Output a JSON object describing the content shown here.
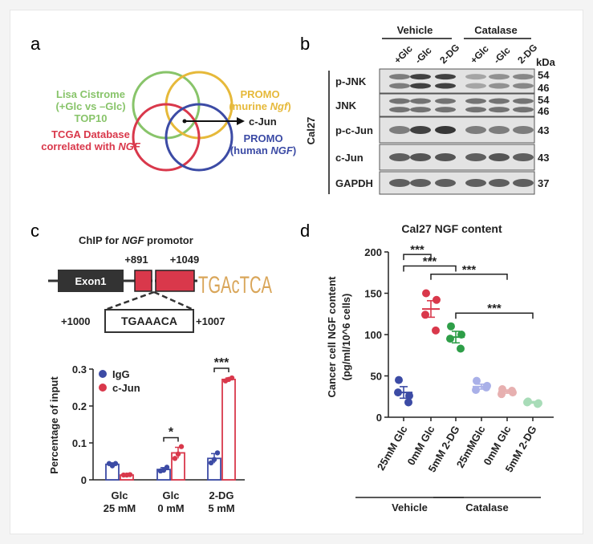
{
  "panels": {
    "a": "a",
    "b": "b",
    "c": "c",
    "d": "d"
  },
  "venn": {
    "lisa": [
      "Lisa Cistrome",
      "(+Glc vs –Glc)",
      "TOP10"
    ],
    "promo_murine": [
      "PROMO",
      "(murine ",
      "Ngf",
      ")"
    ],
    "tcga": [
      "TCGA Database",
      "correlated with ",
      "NGF"
    ],
    "promo_human": [
      "PROMO",
      "(human ",
      "NGF",
      ")"
    ],
    "result": "c-Jun",
    "colors": {
      "lisa": "#88c46a",
      "promo_murine": "#e6b93a",
      "tcga": "#d9384b",
      "promo_human": "#3c4ba5"
    }
  },
  "western": {
    "group_labels": [
      "Vehicle",
      "Catalase"
    ],
    "lane_labels": [
      "+Glc",
      "-Glc",
      "2-DG",
      "+Glc",
      "-Glc",
      "2-DG"
    ],
    "kda_label": "kDa",
    "cell_line": "Cal27",
    "blots": [
      {
        "name": "p-JNK",
        "kda": [
          "54",
          "46"
        ],
        "intensities": [
          0.55,
          0.85,
          0.85,
          0.35,
          0.45,
          0.5
        ]
      },
      {
        "name": "JNK",
        "kda": [
          "54",
          "46"
        ],
        "intensities": [
          0.6,
          0.6,
          0.6,
          0.6,
          0.6,
          0.6
        ]
      },
      {
        "name": "p-c-Jun",
        "kda": [
          "43"
        ],
        "intensities": [
          0.55,
          0.85,
          0.9,
          0.55,
          0.55,
          0.55
        ]
      },
      {
        "name": "c-Jun",
        "kda": [
          "43"
        ],
        "intensities": [
          0.7,
          0.75,
          0.75,
          0.7,
          0.75,
          0.7
        ]
      },
      {
        "name": "GAPDH",
        "kda": [
          "37"
        ],
        "intensities": [
          0.7,
          0.7,
          0.7,
          0.7,
          0.7,
          0.7
        ]
      }
    ]
  },
  "chip": {
    "title_prefix": "ChIP for ",
    "title_gene": "NGF",
    "title_suffix": " promotor",
    "exon_label": "Exon1",
    "pos1": "+891",
    "pos2": "+1049",
    "motif": "TGAcTCA",
    "seq": "TGAAACA",
    "seq_start": "+1000",
    "seq_end": "+1007"
  },
  "chart_data": [
    {
      "type": "bar",
      "ylabel": "Percentage of input",
      "categories": [
        [
          "Glc",
          "25 mM"
        ],
        [
          "Glc",
          "0 mM"
        ],
        [
          "2-DG",
          "5 mM"
        ]
      ],
      "ylim": [
        0,
        0.3
      ],
      "yticks": [
        "0",
        "0.1",
        "0.2",
        "0.3"
      ],
      "legend_position": "top-left",
      "series": [
        {
          "name": "IgG",
          "color": "#3c4ba5",
          "values": [
            0.042,
            0.028,
            0.058
          ],
          "errors": [
            0.004,
            0.005,
            0.013
          ],
          "points": [
            [
              0.044,
              0.038,
              0.044
            ],
            [
              0.024,
              0.026,
              0.034
            ],
            [
              0.046,
              0.055,
              0.073
            ]
          ]
        },
        {
          "name": "c-Jun",
          "color": "#d9384b",
          "values": [
            0.013,
            0.073,
            0.272
          ],
          "errors": [
            0.001,
            0.015,
            0.004
          ],
          "points": [
            [
              0.013,
              0.013,
              0.014
            ],
            [
              0.058,
              0.07,
              0.09
            ],
            [
              0.268,
              0.272,
              0.276
            ]
          ]
        }
      ],
      "annotations": [
        {
          "text": "*",
          "category": 1
        },
        {
          "text": "***",
          "category": 2
        }
      ]
    },
    {
      "type": "scatter",
      "title": "Cal27 NGF content",
      "ylabel_lines": [
        "Cancer cell NGF content",
        "(pg/ml/10^6 cells)"
      ],
      "categories": [
        "25mM Glc",
        "0mM Glc",
        "5mM 2-DG",
        "25mMGlc",
        "0mM Glc",
        "5mM 2-DG"
      ],
      "groups": [
        {
          "name": "Vehicle",
          "from": 0,
          "to": 2
        },
        {
          "name": "Catalase",
          "from": 3,
          "to": 5
        }
      ],
      "ylim": [
        0,
        200
      ],
      "yticks": [
        "0",
        "50",
        "100",
        "150",
        "200"
      ],
      "colors": [
        "#3c4ba5",
        "#d9384b",
        "#2e9e48",
        "#a9b0e8",
        "#e7b0b0",
        "#a8dcb8"
      ],
      "means": [
        30,
        131,
        97,
        37,
        31,
        18
      ],
      "sems": [
        7,
        10,
        7,
        3,
        2,
        1
      ],
      "points": [
        [
          45,
          26,
          30,
          18
        ],
        [
          150,
          142,
          124,
          105
        ],
        [
          110,
          100,
          95,
          83
        ],
        [
          44,
          38,
          33,
          36
        ],
        [
          34,
          30,
          28,
          32
        ],
        [
          19,
          17,
          18,
          16
        ]
      ],
      "significance": [
        {
          "text": "***",
          "from": 0,
          "to": 1,
          "y": 197
        },
        {
          "text": "***",
          "from": 0,
          "to": 2,
          "y": 183
        },
        {
          "text": "***",
          "from": 1,
          "to": 4,
          "y": 173
        },
        {
          "text": "***",
          "from": 2,
          "to": 5,
          "y": 126
        }
      ]
    }
  ]
}
